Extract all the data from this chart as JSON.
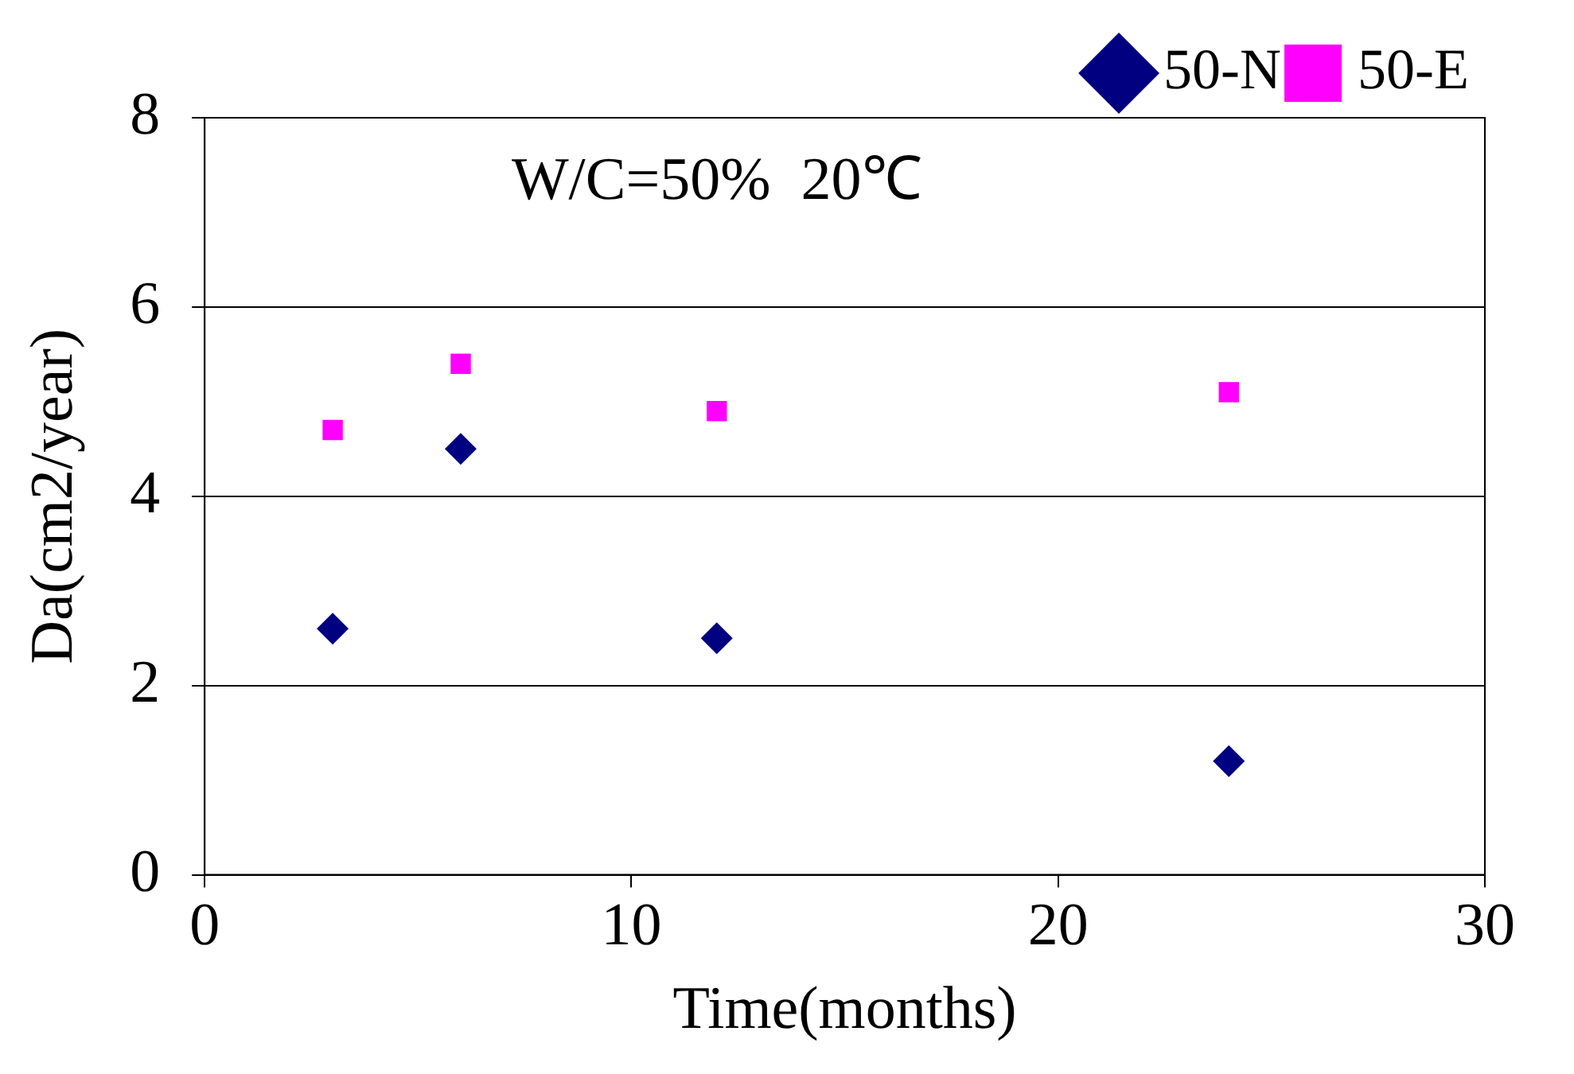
{
  "chart_data": {
    "type": "scatter",
    "xlabel": "Time(months)",
    "ylabel": "Da(cm2/year)",
    "annotations": [
      "W/C=50%  20℃"
    ],
    "xlim": [
      0,
      30
    ],
    "xticks": [
      0,
      10,
      20,
      30
    ],
    "ylim": [
      0,
      8
    ],
    "yticks": [
      0,
      2,
      4,
      6,
      8
    ],
    "grid": "y",
    "legend": "top right",
    "series": [
      {
        "name": "50-N",
        "color": "#000080",
        "marker": "diamond",
        "x": [
          3,
          6,
          12,
          24
        ],
        "values": [
          2.6,
          4.5,
          2.5,
          1.2
        ]
      },
      {
        "name": "50-E",
        "color": "#ff00ff",
        "marker": "square",
        "x": [
          3,
          6,
          12,
          24
        ],
        "values": [
          4.7,
          5.4,
          4.9,
          5.1
        ]
      }
    ]
  }
}
